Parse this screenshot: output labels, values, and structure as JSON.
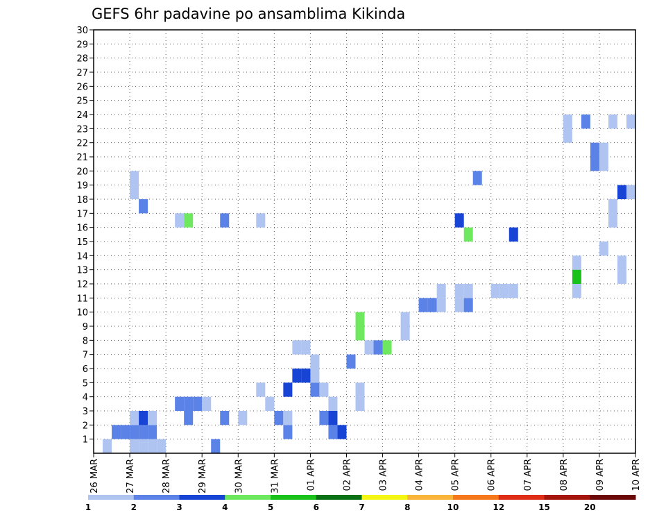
{
  "chart_data": {
    "type": "heatmap",
    "title": "GEFS 6hr padavine po ansamblima Kikinda",
    "xlabel": "",
    "ylabel": "",
    "x_ticks": [
      "26 MAR",
      "27 MAR",
      "28 MAR",
      "29 MAR",
      "30 MAR",
      "31 MAR",
      "01 APR",
      "02 APR",
      "03 APR",
      "04 APR",
      "05 APR",
      "06 APR",
      "07 APR",
      "08 APR",
      "09 APR",
      "10 APR"
    ],
    "y_ticks": [
      "1",
      "2",
      "3",
      "4",
      "5",
      "6",
      "7",
      "8",
      "9",
      "10",
      "11",
      "12",
      "13",
      "14",
      "15",
      "16",
      "17",
      "18",
      "19",
      "20",
      "21",
      "22",
      "23",
      "24",
      "25",
      "26",
      "27",
      "28",
      "29",
      "30"
    ],
    "xlim": [
      0,
      60
    ],
    "ylim": [
      0,
      30
    ],
    "step_hours": 6,
    "grid": true,
    "legend_position": "bottom",
    "colorbar": {
      "labels": [
        "1",
        "2",
        "3",
        "4",
        "5",
        "6",
        "7",
        "8",
        "10",
        "12",
        "15",
        "20"
      ],
      "colors": [
        "#b0c4f2",
        "#5b82e6",
        "#1844d6",
        "#6ee85e",
        "#19c11b",
        "#0a7014",
        "#f5f513",
        "#f9b43a",
        "#f6781a",
        "#df2c17",
        "#a5150c",
        "#6b0808"
      ]
    },
    "unit_mm_levels": [
      1,
      2,
      3,
      4,
      5,
      6,
      7,
      8,
      10,
      12,
      15,
      20
    ],
    "cells": [
      {
        "x": 4,
        "y": 1,
        "v": 1.5
      },
      {
        "x": 5,
        "y": 1,
        "v": 1.5
      },
      {
        "x": 6,
        "y": 1,
        "v": 1.5
      },
      {
        "x": 7,
        "y": 1,
        "v": 1.5
      },
      {
        "x": 13,
        "y": 1,
        "v": 2.5
      },
      {
        "x": 1,
        "y": 1,
        "v": 1.5
      },
      {
        "x": 2,
        "y": 2,
        "v": 2.5
      },
      {
        "x": 3,
        "y": 2,
        "v": 2.5
      },
      {
        "x": 4,
        "y": 2,
        "v": 2.5
      },
      {
        "x": 5,
        "y": 2,
        "v": 2.5
      },
      {
        "x": 6,
        "y": 2,
        "v": 2.5
      },
      {
        "x": 21,
        "y": 2,
        "v": 2.5
      },
      {
        "x": 26,
        "y": 2,
        "v": 2.5
      },
      {
        "x": 27,
        "y": 2,
        "v": 3.5
      },
      {
        "x": 4,
        "y": 3,
        "v": 1.5
      },
      {
        "x": 5,
        "y": 3,
        "v": 3.5
      },
      {
        "x": 6,
        "y": 3,
        "v": 1.5
      },
      {
        "x": 10,
        "y": 3,
        "v": 2.5
      },
      {
        "x": 14,
        "y": 3,
        "v": 2.5
      },
      {
        "x": 16,
        "y": 3,
        "v": 1.5
      },
      {
        "x": 20,
        "y": 3,
        "v": 2.5
      },
      {
        "x": 21,
        "y": 3,
        "v": 1.5
      },
      {
        "x": 25,
        "y": 3,
        "v": 2.5
      },
      {
        "x": 26,
        "y": 3,
        "v": 3.5
      },
      {
        "x": 9,
        "y": 4,
        "v": 2.5
      },
      {
        "x": 10,
        "y": 4,
        "v": 2.5
      },
      {
        "x": 11,
        "y": 4,
        "v": 2.5
      },
      {
        "x": 12,
        "y": 4,
        "v": 1.5
      },
      {
        "x": 19,
        "y": 4,
        "v": 1.5
      },
      {
        "x": 26,
        "y": 4,
        "v": 1.5
      },
      {
        "x": 29,
        "y": 4,
        "v": 1.5
      },
      {
        "x": 18,
        "y": 5,
        "v": 1.5
      },
      {
        "x": 21,
        "y": 5,
        "v": 3.5
      },
      {
        "x": 24,
        "y": 5,
        "v": 2.5
      },
      {
        "x": 25,
        "y": 5,
        "v": 1.5
      },
      {
        "x": 29,
        "y": 5,
        "v": 1.5
      },
      {
        "x": 24,
        "y": 6,
        "v": 1.5
      },
      {
        "x": 22,
        "y": 6,
        "v": 3.5
      },
      {
        "x": 23,
        "y": 6,
        "v": 3.5
      },
      {
        "x": 24,
        "y": 7,
        "v": 1.5
      },
      {
        "x": 28,
        "y": 7,
        "v": 2.5
      },
      {
        "x": 22,
        "y": 8,
        "v": 1.5
      },
      {
        "x": 23,
        "y": 8,
        "v": 1.5
      },
      {
        "x": 30,
        "y": 8,
        "v": 1.5
      },
      {
        "x": 31,
        "y": 8,
        "v": 2.5
      },
      {
        "x": 32,
        "y": 8,
        "v": 4.5
      },
      {
        "x": 29,
        "y": 9,
        "v": 4.5
      },
      {
        "x": 29,
        "y": 10,
        "v": 4.5
      },
      {
        "x": 34,
        "y": 9,
        "v": 1.5
      },
      {
        "x": 34,
        "y": 10,
        "v": 1.5
      },
      {
        "x": 36,
        "y": 11,
        "v": 2.5
      },
      {
        "x": 37,
        "y": 11,
        "v": 2.5
      },
      {
        "x": 38,
        "y": 11,
        "v": 1.5
      },
      {
        "x": 40,
        "y": 11,
        "v": 1.5
      },
      {
        "x": 41,
        "y": 11,
        "v": 2.5
      },
      {
        "x": 38,
        "y": 12,
        "v": 1.5
      },
      {
        "x": 40,
        "y": 12,
        "v": 1.5
      },
      {
        "x": 41,
        "y": 12,
        "v": 1.5
      },
      {
        "x": 44,
        "y": 12,
        "v": 1.5
      },
      {
        "x": 45,
        "y": 12,
        "v": 1.5
      },
      {
        "x": 46,
        "y": 12,
        "v": 1.5
      },
      {
        "x": 53,
        "y": 12,
        "v": 1.5
      },
      {
        "x": 53,
        "y": 13,
        "v": 5.5
      },
      {
        "x": 58,
        "y": 13,
        "v": 1.5
      },
      {
        "x": 58,
        "y": 14,
        "v": 1.5
      },
      {
        "x": 53,
        "y": 14,
        "v": 1.5
      },
      {
        "x": 56,
        "y": 15,
        "v": 1.5
      },
      {
        "x": 46,
        "y": 16,
        "v": 3.5
      },
      {
        "x": 57,
        "y": 17,
        "v": 1.5
      },
      {
        "x": 57,
        "y": 18,
        "v": 1.5
      },
      {
        "x": 4,
        "y": 19,
        "v": 1.5
      },
      {
        "x": 4,
        "y": 20,
        "v": 1.5
      },
      {
        "x": 5,
        "y": 18,
        "v": 2.5
      },
      {
        "x": 9,
        "y": 17,
        "v": 1.5
      },
      {
        "x": 10,
        "y": 17,
        "v": 4.5
      },
      {
        "x": 14,
        "y": 17,
        "v": 2.5
      },
      {
        "x": 18,
        "y": 17,
        "v": 1.5
      },
      {
        "x": 42,
        "y": 20,
        "v": 2.5
      },
      {
        "x": 41,
        "y": 16,
        "v": 4.5
      },
      {
        "x": 40,
        "y": 17,
        "v": 3.5
      },
      {
        "x": 58,
        "y": 19,
        "v": 3.5
      },
      {
        "x": 59,
        "y": 19,
        "v": 1.5
      },
      {
        "x": 59,
        "y": 24,
        "v": 1.5
      },
      {
        "x": 55,
        "y": 21,
        "v": 2.5
      },
      {
        "x": 55,
        "y": 22,
        "v": 2.5
      },
      {
        "x": 56,
        "y": 21,
        "v": 1.5
      },
      {
        "x": 56,
        "y": 22,
        "v": 1.5
      },
      {
        "x": 57,
        "y": 24,
        "v": 1.5
      },
      {
        "x": 52,
        "y": 23,
        "v": 1.5
      },
      {
        "x": 52,
        "y": 24,
        "v": 1.5
      },
      {
        "x": 54,
        "y": 24,
        "v": 2.5
      }
    ]
  }
}
